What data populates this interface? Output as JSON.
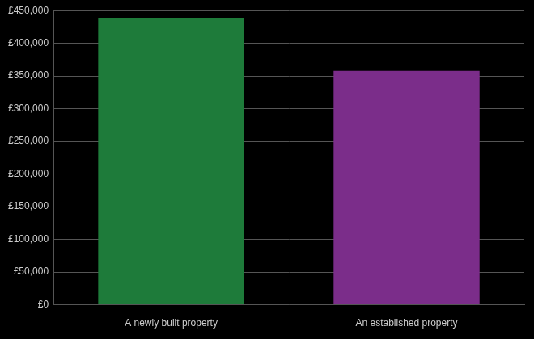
{
  "chart_data": {
    "type": "bar",
    "categories": [
      "A newly built property",
      "An established property"
    ],
    "values": [
      439000,
      358000
    ],
    "colors": [
      "#1e7b3a",
      "#7b2d8a"
    ],
    "ylim": [
      0,
      450000
    ],
    "yticks": [
      {
        "value": 0,
        "label": "£0"
      },
      {
        "value": 50000,
        "label": "£50,000"
      },
      {
        "value": 100000,
        "label": "£100,000"
      },
      {
        "value": 150000,
        "label": "£150,000"
      },
      {
        "value": 200000,
        "label": "£200,000"
      },
      {
        "value": 250000,
        "label": "£250,000"
      },
      {
        "value": 300000,
        "label": "£300,000"
      },
      {
        "value": 350000,
        "label": "£350,000"
      },
      {
        "value": 400000,
        "label": "£400,000"
      },
      {
        "value": 450000,
        "label": "£450,000"
      }
    ],
    "grid": true
  }
}
